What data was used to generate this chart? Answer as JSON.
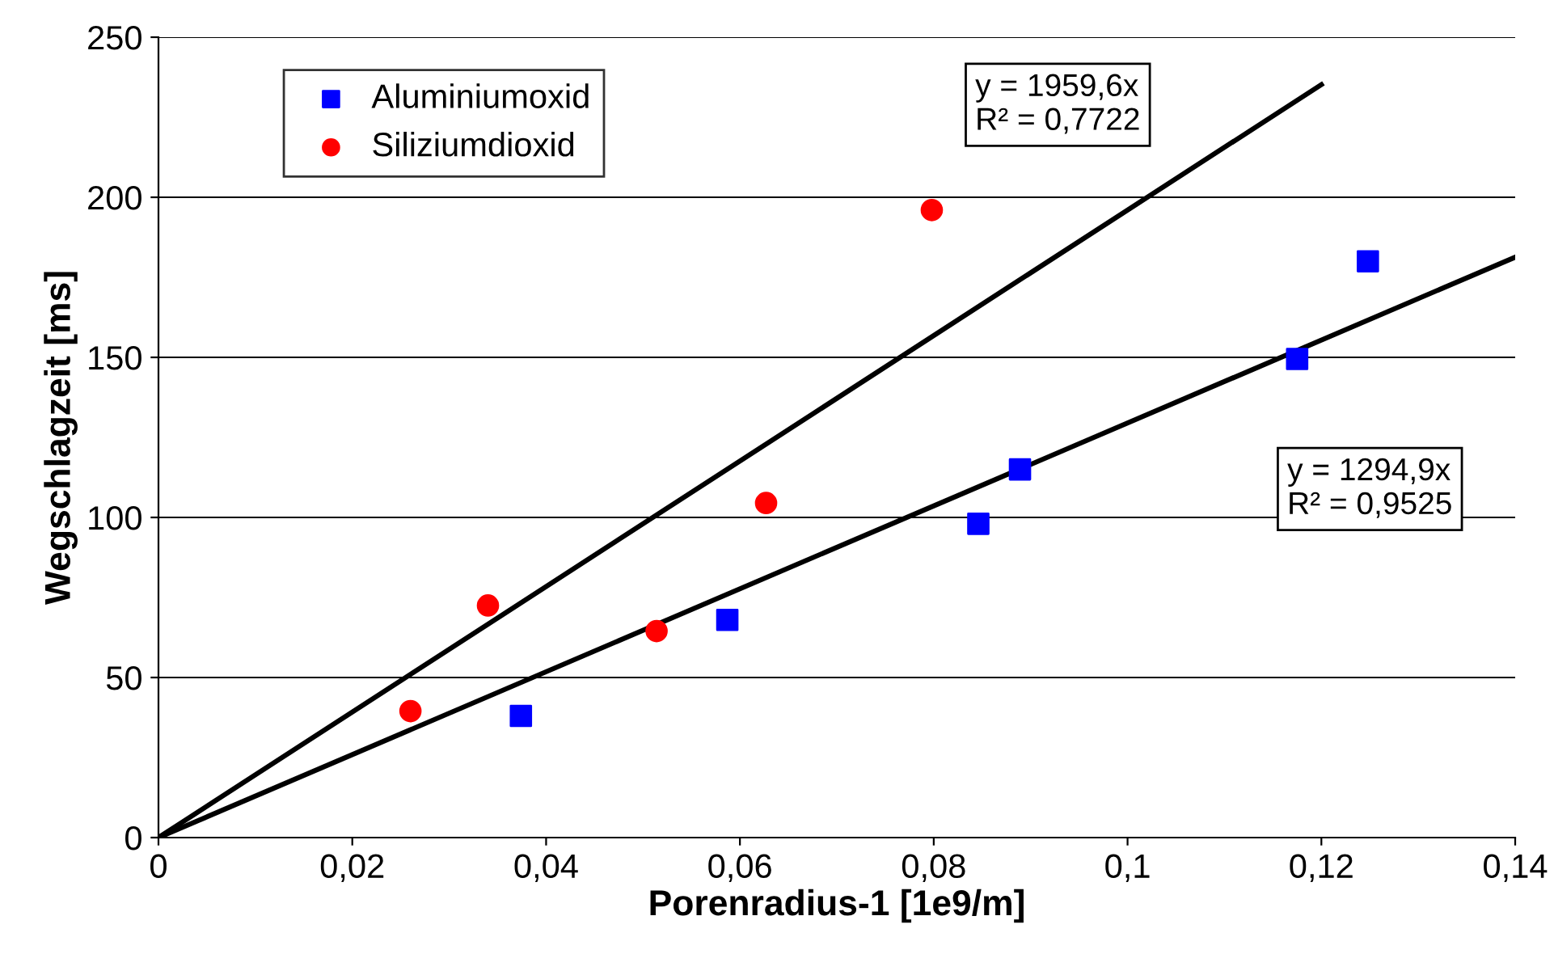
{
  "chart_data": {
    "type": "scatter",
    "xlabel": "Porenradius-1 [1e9/m]",
    "ylabel": "Wegschlagzeit [ms]",
    "xlim": [
      0,
      0.14
    ],
    "ylim": [
      0,
      250
    ],
    "xticks": [
      0,
      {
        "value": 0.02,
        "label": "0,02"
      },
      {
        "value": 0.04,
        "label": "0,04"
      },
      {
        "value": 0.06,
        "label": "0,06"
      },
      {
        "value": 0.08,
        "label": "0,08"
      },
      {
        "value": 0.1,
        "label": "0,1"
      },
      {
        "value": 0.12,
        "label": "0,12"
      },
      {
        "value": 0.14,
        "label": "0,14"
      }
    ],
    "yticks": [
      0,
      50,
      100,
      150,
      200,
      250
    ],
    "grid": "y",
    "legend": "top left",
    "series": [
      {
        "name": "Aluminiumoxid",
        "color": "#0000ff",
        "marker": "square",
        "x": [
          0.0374,
          0.0587,
          0.0846,
          0.0889,
          0.1175,
          0.1248
        ],
        "values": [
          38,
          68,
          98,
          115,
          149.5,
          180
        ]
      },
      {
        "name": "Siliziumdioxid",
        "color": "#ff0000",
        "marker": "circle",
        "x": [
          0.026,
          0.034,
          0.0514,
          0.0627,
          0.0798
        ],
        "values": [
          39.5,
          72.5,
          64.5,
          104.5,
          196
        ]
      },
      {
        "type": "line",
        "color": "#000000",
        "x": [
          0,
          0.12
        ],
        "values": [
          0,
          235.2
        ]
      },
      {
        "type": "line",
        "color": "#000000",
        "x": [
          0,
          0.14
        ],
        "values": [
          0,
          181.3
        ]
      }
    ],
    "annotations": [
      "y = 1959,6x\nR² = 0,7722",
      "y = 1294,9x\nR² = 0,9525"
    ]
  }
}
